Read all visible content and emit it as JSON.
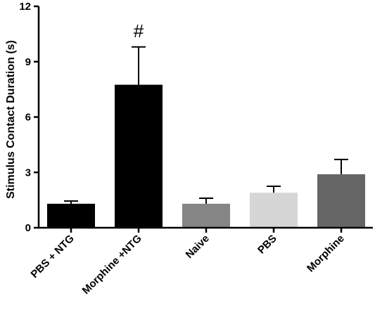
{
  "chart_data": {
    "type": "bar",
    "title": "",
    "xlabel": "",
    "ylabel": "Stimulus Contact Duration (s)",
    "ylim": [
      0,
      12
    ],
    "yticks": [
      "0",
      "3",
      "6",
      "9",
      "12"
    ],
    "categories": [
      "PBS + NTG",
      "Morphine +NTG",
      "Naive",
      "PBS",
      "Morphine"
    ],
    "values": [
      1.3,
      7.75,
      1.3,
      1.9,
      2.9
    ],
    "errors": [
      0.15,
      2.05,
      0.3,
      0.35,
      0.8
    ],
    "colors": [
      "#000000",
      "#000000",
      "#858585",
      "#d6d6d6",
      "#666666"
    ],
    "grid": false,
    "annotations": [
      {
        "category": "Morphine +NTG",
        "text": "#"
      }
    ]
  }
}
